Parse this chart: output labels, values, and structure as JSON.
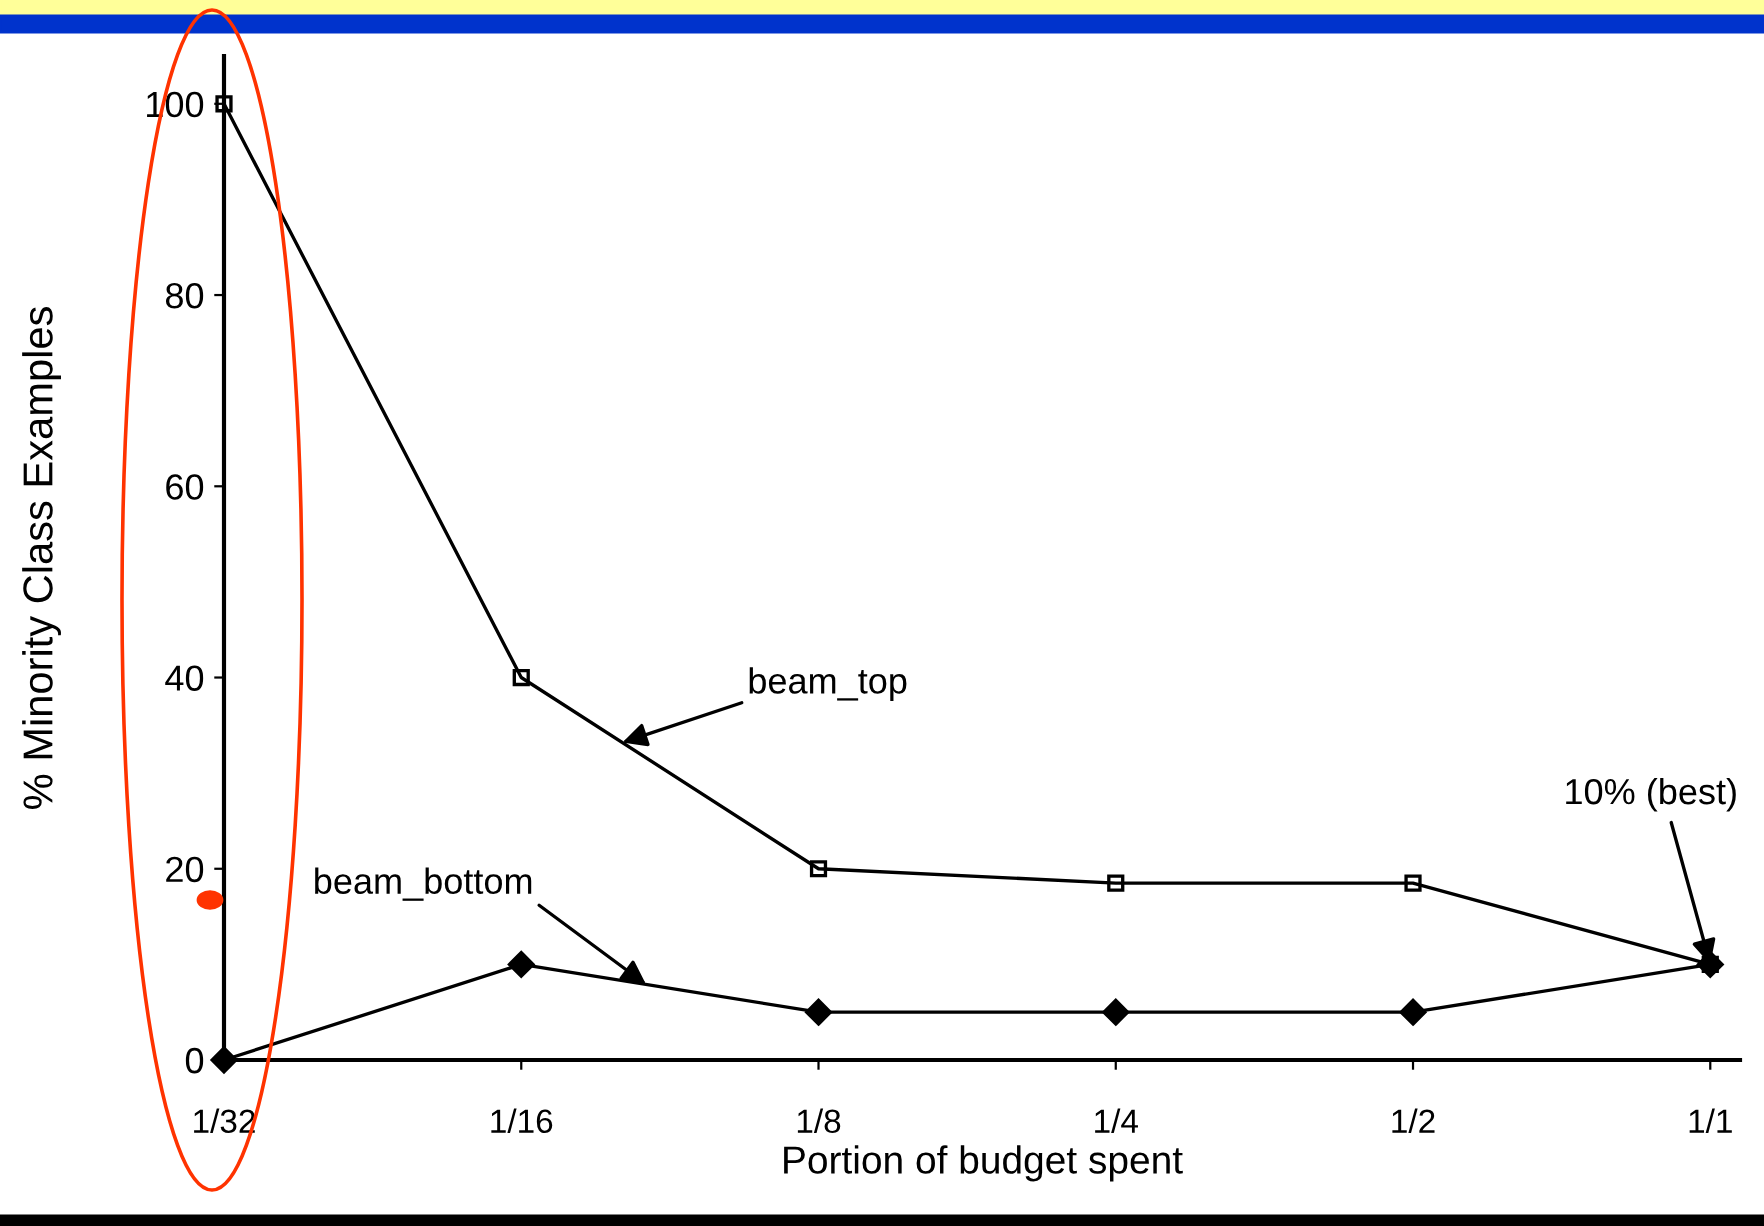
{
  "chart_data": {
    "type": "line",
    "xlabel": "Portion of budget spent",
    "ylabel": "% Minority Class Examples",
    "categories": [
      "1/32",
      "1/16",
      "1/8",
      "1/4",
      "1/2",
      "1/1"
    ],
    "series": [
      {
        "name": "beam_top",
        "color": "#000000",
        "marker": "square",
        "values": [
          100,
          40,
          20,
          18.5,
          18.5,
          10
        ]
      },
      {
        "name": "beam_bottom",
        "color": "#000000",
        "marker": "diamond",
        "values": [
          0,
          10,
          5,
          5,
          5,
          10
        ]
      }
    ],
    "annotations": [
      {
        "text": "10% (best)",
        "x": "1/1",
        "y": 10
      }
    ],
    "ylim": [
      0,
      105
    ],
    "yticks": [
      0,
      20,
      40,
      60,
      80,
      100
    ],
    "grid": false,
    "legend": false,
    "line_style": "solid"
  }
}
